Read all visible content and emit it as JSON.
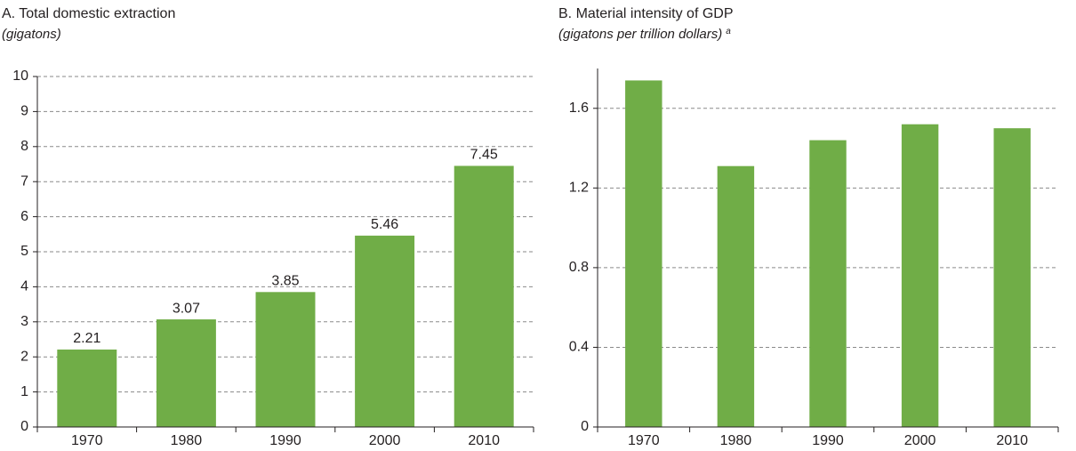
{
  "chart_data": [
    {
      "type": "bar",
      "title": "A. Total domestic extraction",
      "subtitle": "(gigatons)",
      "categories": [
        "1970",
        "1980",
        "1990",
        "2000",
        "2010"
      ],
      "values": [
        2.21,
        3.07,
        3.85,
        5.46,
        7.45
      ],
      "data_labels": true,
      "color": "#70ad47",
      "ylim": [
        0,
        10
      ],
      "yticks": [
        0,
        1,
        2,
        3,
        4,
        5,
        6,
        7,
        8,
        9,
        10
      ],
      "grid": true
    },
    {
      "type": "bar",
      "title": "B. Material intensity of GDP",
      "subtitle": "(gigatons per trillion dollars)",
      "note": "a",
      "categories": [
        "1970",
        "1980",
        "1990",
        "2000",
        "2010"
      ],
      "values": [
        1.74,
        1.31,
        1.44,
        1.52,
        1.5
      ],
      "data_labels": false,
      "color": "#70ad47",
      "ylim": [
        0,
        1.8
      ],
      "yticks": [
        0,
        0.4,
        0.8,
        1.2,
        1.6
      ],
      "grid": true
    }
  ]
}
